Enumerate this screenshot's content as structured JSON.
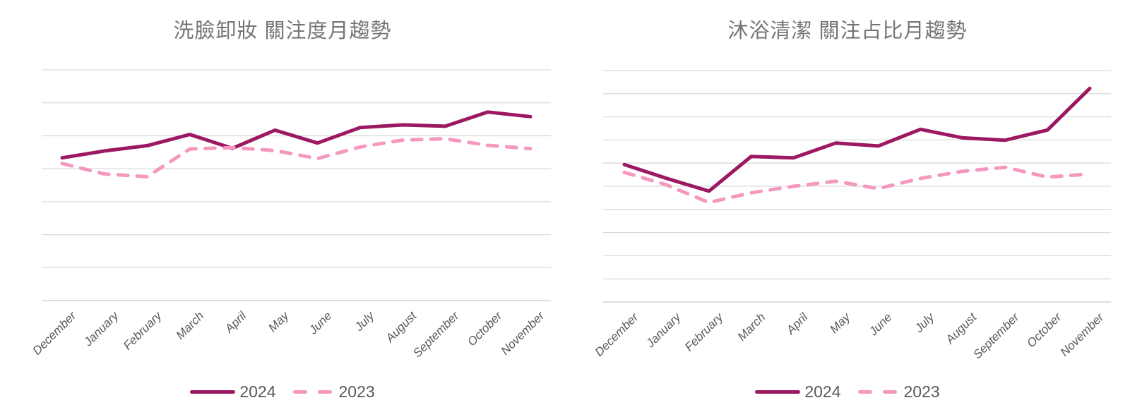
{
  "page": {
    "background": "#ffffff"
  },
  "colors": {
    "grid": "#DBDBDB",
    "axis": "#C9C9C9",
    "title_text": "#757575",
    "axis_label_text": "#595959",
    "legend_text": "#595959",
    "series_2024": "#9C1962",
    "series_2023": "#F498C0"
  },
  "charts": [
    {
      "title": "洗臉卸妝 關注度月趨勢",
      "chart_data": {
        "type": "line",
        "categories": [
          "December",
          "January",
          "February",
          "March",
          "April",
          "May",
          "June",
          "July",
          "August",
          "September",
          "October",
          "November"
        ],
        "series": [
          {
            "name": "2024",
            "style": "solid",
            "color": "#9C1962",
            "values": [
              4.33,
              4.54,
              4.7,
              5.04,
              4.62,
              5.17,
              4.78,
              5.25,
              5.33,
              5.29,
              5.72,
              5.58
            ]
          },
          {
            "name": "2023",
            "style": "dashed",
            "color": "#F498C0",
            "values": [
              4.16,
              3.84,
              3.76,
              4.6,
              4.64,
              4.55,
              4.31,
              4.66,
              4.87,
              4.91,
              4.71,
              4.61
            ]
          }
        ],
        "ylim": [
          0,
          7
        ],
        "gridline_count": 8,
        "grid": true,
        "y_tick_labels": [],
        "legend_position": "bottom"
      }
    },
    {
      "title": "沐浴清潔 關注占比月趨勢",
      "chart_data": {
        "type": "line",
        "categories": [
          "December",
          "January",
          "February",
          "March",
          "April",
          "May",
          "June",
          "July",
          "August",
          "September",
          "October",
          "November"
        ],
        "series": [
          {
            "name": "2024",
            "style": "solid",
            "color": "#9C1962",
            "values": [
              5.94,
              5.34,
              4.79,
              6.29,
              6.23,
              6.87,
              6.74,
              7.46,
              7.09,
              6.99,
              7.43,
              9.23
            ]
          },
          {
            "name": "2023",
            "style": "dashed",
            "color": "#F498C0",
            "values": [
              5.6,
              5.06,
              4.3,
              4.72,
              5.0,
              5.22,
              4.9,
              5.34,
              5.65,
              5.82,
              5.4,
              5.53
            ]
          }
        ],
        "ylim": [
          0,
          10
        ],
        "gridline_count": 11,
        "grid": true,
        "y_tick_labels": [],
        "legend_position": "bottom"
      }
    }
  ]
}
